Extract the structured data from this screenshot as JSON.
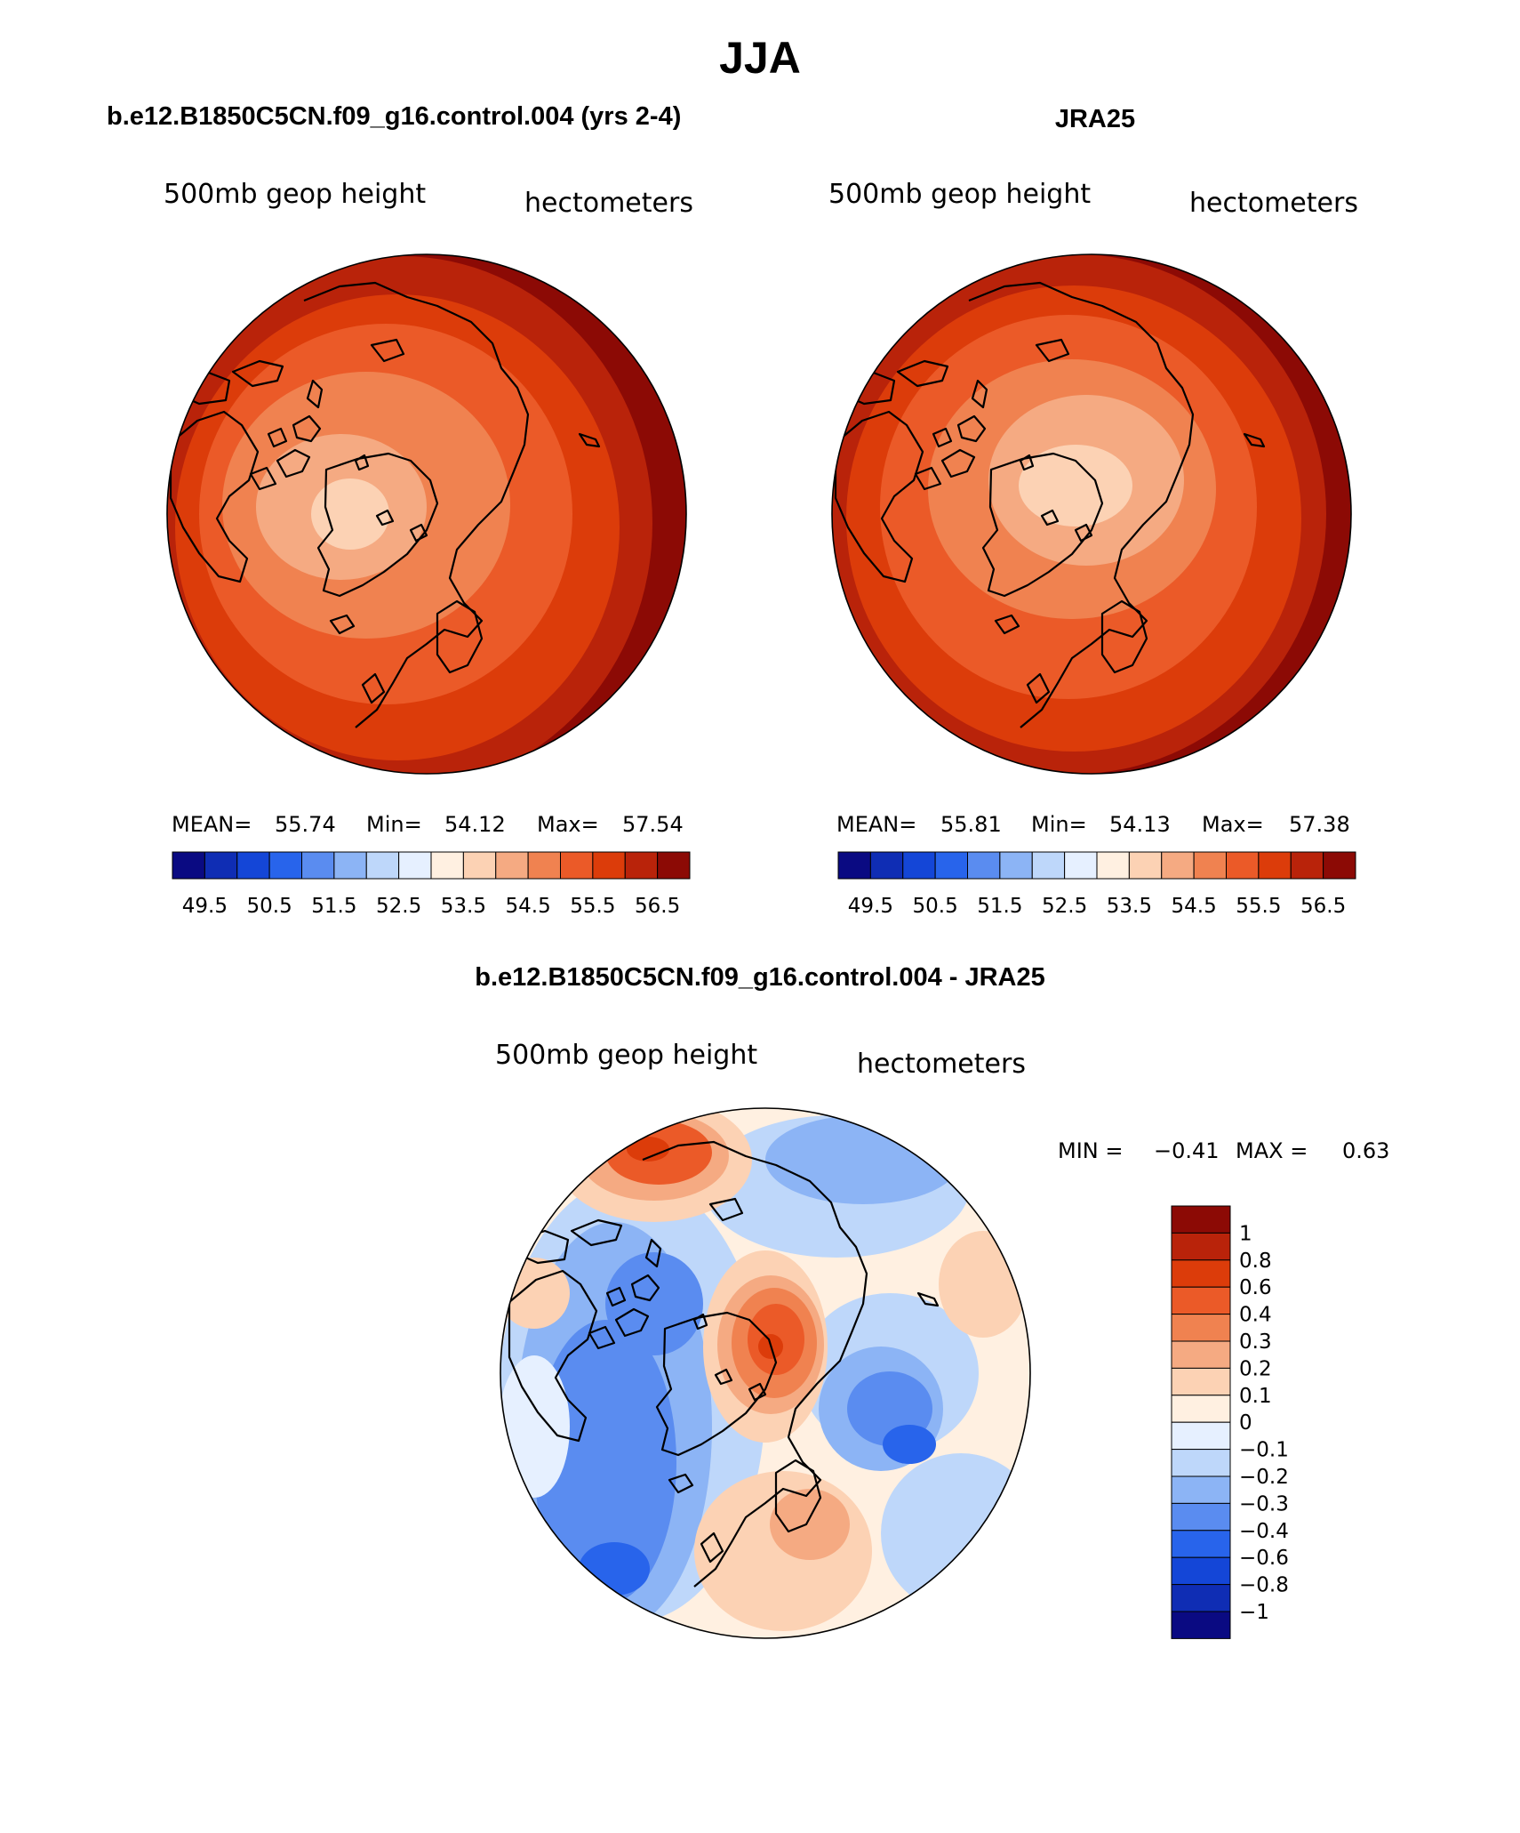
{
  "title": "JJA",
  "panels": [
    {
      "header": "b.e12.B1850C5CN.f09_g16.control.004 (yrs 2-4)",
      "field_label": "500mb geop height",
      "units_label": "hectometers",
      "stats": {
        "mean_label": "MEAN=",
        "mean": "55.74",
        "min_label": "Min=",
        "min": "54.12",
        "max_label": "Max=",
        "max": "57.54"
      }
    },
    {
      "header": "JRA25",
      "field_label": "500mb geop height",
      "units_label": "hectometers",
      "stats": {
        "mean_label": "MEAN=",
        "mean": "55.81",
        "min_label": "Min=",
        "min": "54.13",
        "max_label": "Max=",
        "max": "57.38"
      }
    }
  ],
  "height_colorbar": {
    "tick_labels": [
      "49.5",
      "50.5",
      "51.5",
      "52.5",
      "53.5",
      "54.5",
      "55.5",
      "56.5"
    ],
    "colors": [
      "#0a0a82",
      "#0f2db4",
      "#1446d7",
      "#2864eb",
      "#5a8cf0",
      "#8cb4f5",
      "#bed7fa",
      "#e6f0ff",
      "#fff0e1",
      "#fcd2b4",
      "#f5aa82",
      "#f08250",
      "#eb5a28",
      "#dc3c0a",
      "#b9230a",
      "#8c0a05"
    ]
  },
  "difference_panel": {
    "header": "b.e12.B1850C5CN.f09_g16.control.004 - JRA25",
    "field_label": "500mb geop height",
    "units_label": "hectometers",
    "min_label": "MIN =",
    "min": "−0.41",
    "max_label": "MAX =",
    "max": "0.63",
    "colorbar": {
      "levels": [
        "1",
        "0.8",
        "0.6",
        "0.4",
        "0.3",
        "0.2",
        "0.1",
        "0",
        "−0.1",
        "−0.2",
        "−0.3",
        "−0.4",
        "−0.6",
        "−0.8",
        "−1"
      ],
      "colors": [
        "#8c0a05",
        "#b9230a",
        "#dc3c0a",
        "#eb5a28",
        "#f08250",
        "#f5aa82",
        "#fcd2b4",
        "#fff0e1",
        "#e6f0ff",
        "#bed7fa",
        "#8cb4f5",
        "#5a8cf0",
        "#2864eb",
        "#1446d7",
        "#0f2db4",
        "#0a0a82"
      ]
    }
  }
}
